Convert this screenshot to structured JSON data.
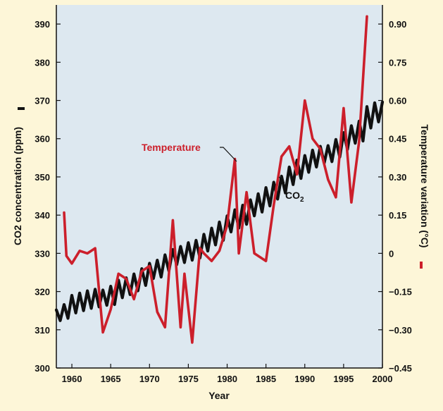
{
  "chart_data": {
    "type": "line",
    "xlabel": "Year",
    "ylabel_left": "CO2 concentration (ppm)",
    "ylabel_right": "Temperature variation (°C)",
    "xlim": [
      1958,
      2000
    ],
    "ylim_left": [
      300,
      395
    ],
    "ylim_right": [
      -0.45,
      0.975
    ],
    "x_ticks": [
      "1960",
      "1965",
      "1970",
      "1975",
      "1980",
      "1985",
      "1990",
      "1995",
      "2000"
    ],
    "y_left_ticks": [
      "300",
      "310",
      "320",
      "330",
      "340",
      "350",
      "360",
      "370",
      "380",
      "390"
    ],
    "y_right_ticks": [
      "−0.45",
      "−0.30",
      "−0.15",
      "0",
      "0.15",
      "0.30",
      "0.45",
      "0.60",
      "0.75",
      "0.90"
    ],
    "grid": false,
    "colors": {
      "plot_background": "#dde8f0",
      "page_background": "#fdf6d8",
      "co2_line": "#111111",
      "temperature_line": "#cc1f2b"
    },
    "annotations": {
      "temperature": "Temperature",
      "co2_main": "CO",
      "co2_sub": "2"
    },
    "series": [
      {
        "key": "co2",
        "axis": "left",
        "points": [
          [
            1958.0,
            315.2
          ],
          [
            1958.5,
            312.4
          ],
          [
            1959.0,
            316.6
          ],
          [
            1959.5,
            313.0
          ],
          [
            1960.0,
            319.0
          ],
          [
            1960.5,
            314.4
          ],
          [
            1961.0,
            319.6
          ],
          [
            1961.5,
            315.0
          ],
          [
            1962.0,
            320.2
          ],
          [
            1962.5,
            315.6
          ],
          [
            1963.0,
            320.6
          ],
          [
            1963.5,
            316.0
          ],
          [
            1964.0,
            320.4
          ],
          [
            1964.5,
            316.4
          ],
          [
            1965.0,
            321.4
          ],
          [
            1965.5,
            316.6
          ],
          [
            1966.0,
            323.0
          ],
          [
            1966.5,
            318.4
          ],
          [
            1967.0,
            323.6
          ],
          [
            1967.5,
            319.2
          ],
          [
            1968.0,
            324.6
          ],
          [
            1968.5,
            320.2
          ],
          [
            1969.0,
            326.0
          ],
          [
            1969.5,
            321.6
          ],
          [
            1970.0,
            327.4
          ],
          [
            1970.5,
            323.4
          ],
          [
            1971.0,
            328.2
          ],
          [
            1971.5,
            323.8
          ],
          [
            1972.0,
            329.6
          ],
          [
            1972.5,
            325.4
          ],
          [
            1973.0,
            331.0
          ],
          [
            1973.5,
            327.0
          ],
          [
            1974.0,
            331.8
          ],
          [
            1974.5,
            327.6
          ],
          [
            1975.0,
            332.8
          ],
          [
            1975.5,
            328.2
          ],
          [
            1976.0,
            333.4
          ],
          [
            1976.5,
            328.8
          ],
          [
            1977.0,
            335.0
          ],
          [
            1977.5,
            330.6
          ],
          [
            1978.0,
            336.6
          ],
          [
            1978.5,
            332.2
          ],
          [
            1979.0,
            338.2
          ],
          [
            1979.5,
            333.4
          ],
          [
            1980.0,
            339.8
          ],
          [
            1980.5,
            335.6
          ],
          [
            1981.0,
            341.4
          ],
          [
            1981.5,
            336.6
          ],
          [
            1982.0,
            342.6
          ],
          [
            1982.5,
            337.6
          ],
          [
            1983.0,
            344.0
          ],
          [
            1983.5,
            339.8
          ],
          [
            1984.0,
            345.6
          ],
          [
            1984.5,
            340.8
          ],
          [
            1985.0,
            347.2
          ],
          [
            1985.5,
            342.4
          ],
          [
            1986.0,
            348.6
          ],
          [
            1986.5,
            344.2
          ],
          [
            1987.0,
            350.2
          ],
          [
            1987.5,
            345.8
          ],
          [
            1988.0,
            352.6
          ],
          [
            1988.5,
            348.0
          ],
          [
            1989.0,
            354.4
          ],
          [
            1989.5,
            349.6
          ],
          [
            1990.0,
            355.6
          ],
          [
            1990.5,
            351.2
          ],
          [
            1991.0,
            357.0
          ],
          [
            1991.5,
            352.6
          ],
          [
            1992.0,
            358.0
          ],
          [
            1992.5,
            353.6
          ],
          [
            1993.0,
            358.2
          ],
          [
            1993.5,
            354.0
          ],
          [
            1994.0,
            359.8
          ],
          [
            1994.5,
            355.2
          ],
          [
            1995.0,
            361.6
          ],
          [
            1995.5,
            357.2
          ],
          [
            1996.0,
            363.4
          ],
          [
            1996.5,
            358.8
          ],
          [
            1997.0,
            364.6
          ],
          [
            1997.5,
            359.4
          ],
          [
            1998.0,
            368.4
          ],
          [
            1998.5,
            362.8
          ],
          [
            1999.0,
            369.4
          ],
          [
            1999.5,
            364.4
          ],
          [
            2000.0,
            369.6
          ]
        ]
      },
      {
        "key": "temperature",
        "axis": "right",
        "points": [
          [
            1959.0,
            0.16
          ],
          [
            1959.3,
            -0.01
          ],
          [
            1960.0,
            -0.04
          ],
          [
            1961.0,
            0.01
          ],
          [
            1962.0,
            0.0
          ],
          [
            1963.0,
            0.02
          ],
          [
            1964.0,
            -0.31
          ],
          [
            1965.0,
            -0.22
          ],
          [
            1966.0,
            -0.08
          ],
          [
            1967.0,
            -0.1
          ],
          [
            1968.0,
            -0.18
          ],
          [
            1969.0,
            -0.07
          ],
          [
            1970.0,
            -0.05
          ],
          [
            1971.0,
            -0.23
          ],
          [
            1972.0,
            -0.29
          ],
          [
            1973.0,
            0.13
          ],
          [
            1974.0,
            -0.29
          ],
          [
            1974.5,
            -0.08
          ],
          [
            1975.5,
            -0.35
          ],
          [
            1976.5,
            0.02
          ],
          [
            1977.0,
            0.0
          ],
          [
            1978.0,
            -0.03
          ],
          [
            1979.0,
            0.01
          ],
          [
            1980.0,
            0.11
          ],
          [
            1981.0,
            0.37
          ],
          [
            1981.5,
            0.0
          ],
          [
            1982.5,
            0.24
          ],
          [
            1983.5,
            0.0
          ],
          [
            1985.0,
            -0.03
          ],
          [
            1986.0,
            0.19
          ],
          [
            1987.0,
            0.38
          ],
          [
            1988.0,
            0.42
          ],
          [
            1989.0,
            0.31
          ],
          [
            1990.0,
            0.6
          ],
          [
            1991.0,
            0.45
          ],
          [
            1992.0,
            0.41
          ],
          [
            1993.0,
            0.29
          ],
          [
            1994.0,
            0.22
          ],
          [
            1995.0,
            0.57
          ],
          [
            1996.0,
            0.2
          ],
          [
            1997.0,
            0.44
          ],
          [
            1998.0,
            0.93
          ]
        ]
      }
    ]
  }
}
